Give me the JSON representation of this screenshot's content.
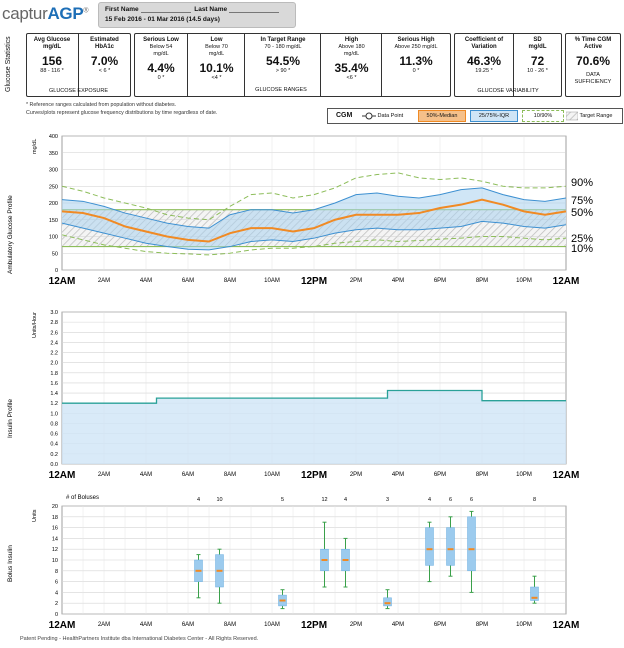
{
  "header": {
    "logo_prefix": "captur",
    "logo_brand": "AGP",
    "logo_mark": "®",
    "first_name_label": "First Name",
    "last_name_label": "Last Name",
    "date_range": "15 Feb 2016 - 01 Mar 2016 (14.5 days)"
  },
  "stats": {
    "section_label": "Glucose Statistics",
    "exposure": {
      "caption": "GLUCOSE EXPOSURE",
      "avg": {
        "title": "Avg Glucose",
        "unit": "mg/dL",
        "value": "156",
        "range": "88 - 116 *"
      },
      "a1c": {
        "title": "Estimated",
        "unit": "HbA1c",
        "value": "7.0%",
        "range": "< 6 *"
      }
    },
    "ranges": {
      "caption": "GLUCOSE RANGES",
      "serious_low": {
        "title": "Serious Low",
        "desc": "Below 54 mg/dL",
        "value": "4.4%",
        "range": "0 *"
      },
      "low": {
        "title": "Low",
        "desc": "Below 70 mg/dL",
        "value": "10.1%",
        "range": "<4 *"
      },
      "target": {
        "title": "In Target Range",
        "desc": "70 - 180 mg/dL",
        "value": "54.5%",
        "range": "> 90 *"
      },
      "high": {
        "title": "High",
        "desc": "Above 180 mg/dL",
        "value": "35.4%",
        "range": "<6 *"
      },
      "serious_high": {
        "title": "Serious High",
        "desc": "Above 250 mg/dL",
        "value": "11.3%",
        "range": "0 *"
      }
    },
    "variability": {
      "caption": "GLUCOSE VARIABILITY",
      "cv": {
        "title": "Coefficient of Variation",
        "value": "46.3%",
        "range": "19.25 *"
      },
      "sd": {
        "title": "SD",
        "unit": "mg/dL",
        "value": "72",
        "range": "10 - 26 *"
      }
    },
    "sufficiency": {
      "title": "% Time CGM Active",
      "value": "70.6%",
      "caption": "DATA SUFFICIENCY"
    }
  },
  "notes": {
    "line1": "* Reference ranges calculated from population without diabetes.",
    "line2": "Curves/plots represent glucose frequency distributions by time regardless of date."
  },
  "legend": {
    "cgm": "CGM",
    "data_point": "Data Point",
    "median": "50%-Median",
    "iqr": "25/75%-IQR",
    "p10_90": "10/90%",
    "target": "Target Range"
  },
  "colors": {
    "median": "#f08a24",
    "iqr": "#a9d1ee",
    "iqr_line": "#3d90d1",
    "p10_90": "#8dbd5a",
    "insulin_line": "#2aa198",
    "bolus_whisker": "#3aa04a"
  },
  "chart_data": [
    {
      "type": "area",
      "title": "",
      "ylabel": "mg/dL",
      "section_label": "Ambulatory Glucose Profile",
      "ylim": [
        0,
        400
      ],
      "yticks": [
        "400",
        "350",
        "300",
        "250",
        "200",
        "150",
        "100",
        "50",
        "0"
      ],
      "xticks_major": [
        "12AM",
        "12PM",
        "12AM"
      ],
      "xticks_minor": [
        "2AM",
        "4AM",
        "6AM",
        "8AM",
        "10AM",
        "2PM",
        "4PM",
        "6PM",
        "8PM",
        "10PM"
      ],
      "target_range": [
        70,
        180
      ],
      "x": [
        0,
        1,
        2,
        3,
        4,
        5,
        6,
        7,
        8,
        9,
        10,
        11,
        12,
        13,
        14,
        15,
        16,
        17,
        18,
        19,
        20,
        21,
        22,
        23,
        24
      ],
      "series": [
        {
          "name": "90%",
          "values": [
            250,
            235,
            215,
            200,
            185,
            165,
            155,
            150,
            190,
            225,
            230,
            215,
            225,
            245,
            275,
            285,
            290,
            275,
            270,
            275,
            265,
            250,
            245,
            245,
            250
          ]
        },
        {
          "name": "75%",
          "values": [
            210,
            205,
            190,
            170,
            155,
            140,
            130,
            125,
            165,
            180,
            180,
            170,
            180,
            200,
            225,
            230,
            220,
            215,
            225,
            240,
            245,
            225,
            210,
            205,
            215
          ]
        },
        {
          "name": "50%",
          "values": [
            175,
            170,
            155,
            130,
            115,
            100,
            90,
            85,
            110,
            125,
            125,
            115,
            125,
            150,
            165,
            165,
            165,
            170,
            185,
            195,
            210,
            195,
            175,
            165,
            175
          ]
        },
        {
          "name": "25%",
          "values": [
            140,
            125,
            110,
            95,
            80,
            70,
            62,
            60,
            70,
            85,
            90,
            85,
            95,
            110,
            120,
            125,
            120,
            120,
            125,
            130,
            145,
            140,
            130,
            125,
            135
          ]
        },
        {
          "name": "10%",
          "values": [
            105,
            90,
            75,
            65,
            55,
            50,
            48,
            45,
            50,
            60,
            65,
            65,
            70,
            80,
            85,
            90,
            85,
            88,
            92,
            95,
            100,
            100,
            95,
            90,
            95
          ]
        }
      ],
      "percentile_labels": [
        "90%",
        "75%",
        "50%",
        "25%",
        "10%"
      ]
    },
    {
      "type": "area",
      "title": "",
      "ylabel": "Units/Hour",
      "section_label": "Insulin Profile",
      "ylim": [
        0,
        3.0
      ],
      "yticks": [
        "3.0",
        "2.8",
        "2.6",
        "2.4",
        "2.2",
        "2.0",
        "1.8",
        "1.6",
        "1.4",
        "1.2",
        "1.0",
        "0.8",
        "0.6",
        "0.4",
        "0.2",
        "0.0"
      ],
      "xticks_major": [
        "12AM",
        "12PM",
        "12AM"
      ],
      "xticks_minor": [
        "2AM",
        "4AM",
        "6AM",
        "8AM",
        "10AM",
        "2PM",
        "4PM",
        "6PM",
        "8PM",
        "10PM"
      ],
      "steps": [
        {
          "from": 0,
          "to": 4.5,
          "value": 1.2
        },
        {
          "from": 4.5,
          "to": 15.5,
          "value": 1.3
        },
        {
          "from": 15.5,
          "to": 20,
          "value": 1.45
        },
        {
          "from": 20,
          "to": 24,
          "value": 1.25
        }
      ]
    },
    {
      "type": "box",
      "title": "",
      "ylabel": "Units",
      "section_label": "Bolus Insulin",
      "count_label": "# of Boluses",
      "ylim": [
        0,
        20
      ],
      "yticks": [
        "20",
        "18",
        "16",
        "14",
        "12",
        "10",
        "8",
        "6",
        "4",
        "2",
        "0"
      ],
      "xticks_major": [
        "12AM",
        "12PM",
        "12AM"
      ],
      "xticks_minor": [
        "2AM",
        "4AM",
        "6AM",
        "8AM",
        "10AM",
        "2PM",
        "4PM",
        "6PM",
        "8PM",
        "10PM"
      ],
      "boxes": [
        {
          "hour": 6.5,
          "count": "4",
          "min": 3,
          "q1": 6,
          "median": 8,
          "q3": 10,
          "max": 11
        },
        {
          "hour": 7.5,
          "count": "10",
          "min": 2,
          "q1": 5,
          "median": 8,
          "q3": 11,
          "max": 12
        },
        {
          "hour": 10.5,
          "count": "5",
          "min": 1,
          "q1": 1.5,
          "median": 2.5,
          "q3": 3.5,
          "max": 4.5
        },
        {
          "hour": 12.5,
          "count": "12",
          "min": 5,
          "q1": 8,
          "median": 10,
          "q3": 12,
          "max": 17
        },
        {
          "hour": 13.5,
          "count": "4",
          "min": 5,
          "q1": 8,
          "median": 10,
          "q3": 12,
          "max": 14
        },
        {
          "hour": 15.5,
          "count": "3",
          "min": 1,
          "q1": 1.5,
          "median": 2,
          "q3": 3,
          "max": 4.5
        },
        {
          "hour": 17.5,
          "count": "4",
          "min": 6,
          "q1": 9,
          "median": 12,
          "q3": 16,
          "max": 17
        },
        {
          "hour": 18.5,
          "count": "6",
          "min": 7,
          "q1": 9,
          "median": 12,
          "q3": 16,
          "max": 18
        },
        {
          "hour": 19.5,
          "count": "6",
          "min": 4,
          "q1": 8,
          "median": 12,
          "q3": 18,
          "max": 19
        },
        {
          "hour": 22.5,
          "count": "8",
          "min": 2,
          "q1": 2.5,
          "median": 3,
          "q3": 5,
          "max": 7
        }
      ]
    }
  ],
  "footer": "Patent Pending -  HealthPartners Institute dba International Diabetes Center - All Rights Reserved."
}
